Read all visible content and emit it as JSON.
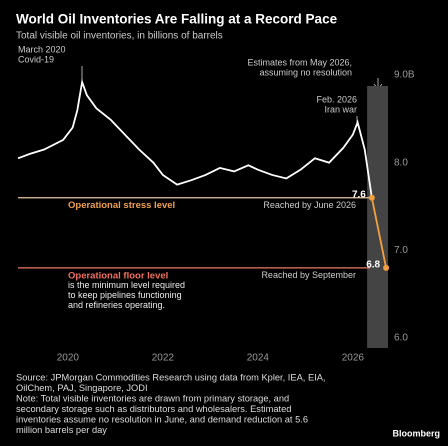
{
  "chart_data": {
    "type": "line",
    "title": "World Oil Inventories Are Falling at a Record Pace",
    "subtitle": "Total visible oil inventories, in billions of barrels",
    "xlim": [
      2018.95,
      2026.74
    ],
    "ylim": [
      6.0,
      9.0
    ],
    "xticks": [
      2020,
      2022,
      2024,
      2026
    ],
    "yticks": [
      {
        "value": 6.0,
        "label": "6.0"
      },
      {
        "value": 7.0,
        "label": "7.0"
      },
      {
        "value": 8.0,
        "label": "8.0"
      },
      {
        "value": 9.0,
        "label": "9.0B"
      }
    ],
    "series": [
      {
        "color": "#ffffff",
        "x": [
          2018.95,
          2019.2,
          2019.5,
          2019.9,
          2020.1,
          2020.2,
          2020.3,
          2020.4,
          2020.6,
          2020.9,
          2021.2,
          2021.5,
          2021.8,
          2022.0,
          2022.3,
          2022.6,
          2022.9,
          2023.2,
          2023.5,
          2023.8,
          2024.0,
          2024.3,
          2024.6,
          2024.9,
          2025.2,
          2025.5,
          2025.8,
          2026.0,
          2026.1,
          2026.25,
          2026.4
        ],
        "values": [
          8.05,
          8.1,
          8.15,
          8.26,
          8.4,
          8.6,
          8.92,
          8.77,
          8.62,
          8.49,
          8.32,
          8.15,
          8.0,
          7.86,
          7.75,
          7.8,
          7.86,
          7.94,
          7.9,
          7.97,
          7.92,
          7.86,
          7.82,
          7.92,
          8.05,
          8.0,
          8.17,
          8.32,
          8.46,
          8.15,
          7.6
        ]
      },
      {
        "color": "#f5a040",
        "x": [
          2026.4,
          2026.7
        ],
        "values": [
          7.6,
          6.8
        ]
      }
    ],
    "shade": {
      "from": 2026.3,
      "to": 2026.74,
      "color": "#444444"
    },
    "reference_lines": [
      {
        "value": 7.6,
        "color": "#e9c4a4",
        "label": "Operational stress level",
        "label_color": "#f0a050",
        "note": "Reached by June 2026"
      },
      {
        "value": 6.8,
        "color": "#ee7a68",
        "label": "Operational floor level",
        "label_color": "#f07060",
        "note": "Reached by September",
        "description": [
          "is the minimum level required",
          "to keep pipelines functioning",
          "and refineries operating."
        ]
      }
    ],
    "annotations": [
      [
        "March 2020",
        "Covid-19"
      ],
      [
        "Feb. 2026",
        "Iran war"
      ],
      [
        "Estimates from May 2026,",
        "assuming no resolution"
      ]
    ],
    "source": [
      "Source: JPMorgan Commodities Research using data from Kpler, IEA, EIA,",
      "OilChem, PAJ, Singapore, JODI",
      "Note: Total visible inventories are drawn from primary storage, and",
      "secondary storage such as distributors and wholesalers. Estimated",
      "inventories assume no resolution in June, and demand reduction at 5.6",
      "million barrels per day"
    ],
    "brand": "Bloomberg"
  }
}
